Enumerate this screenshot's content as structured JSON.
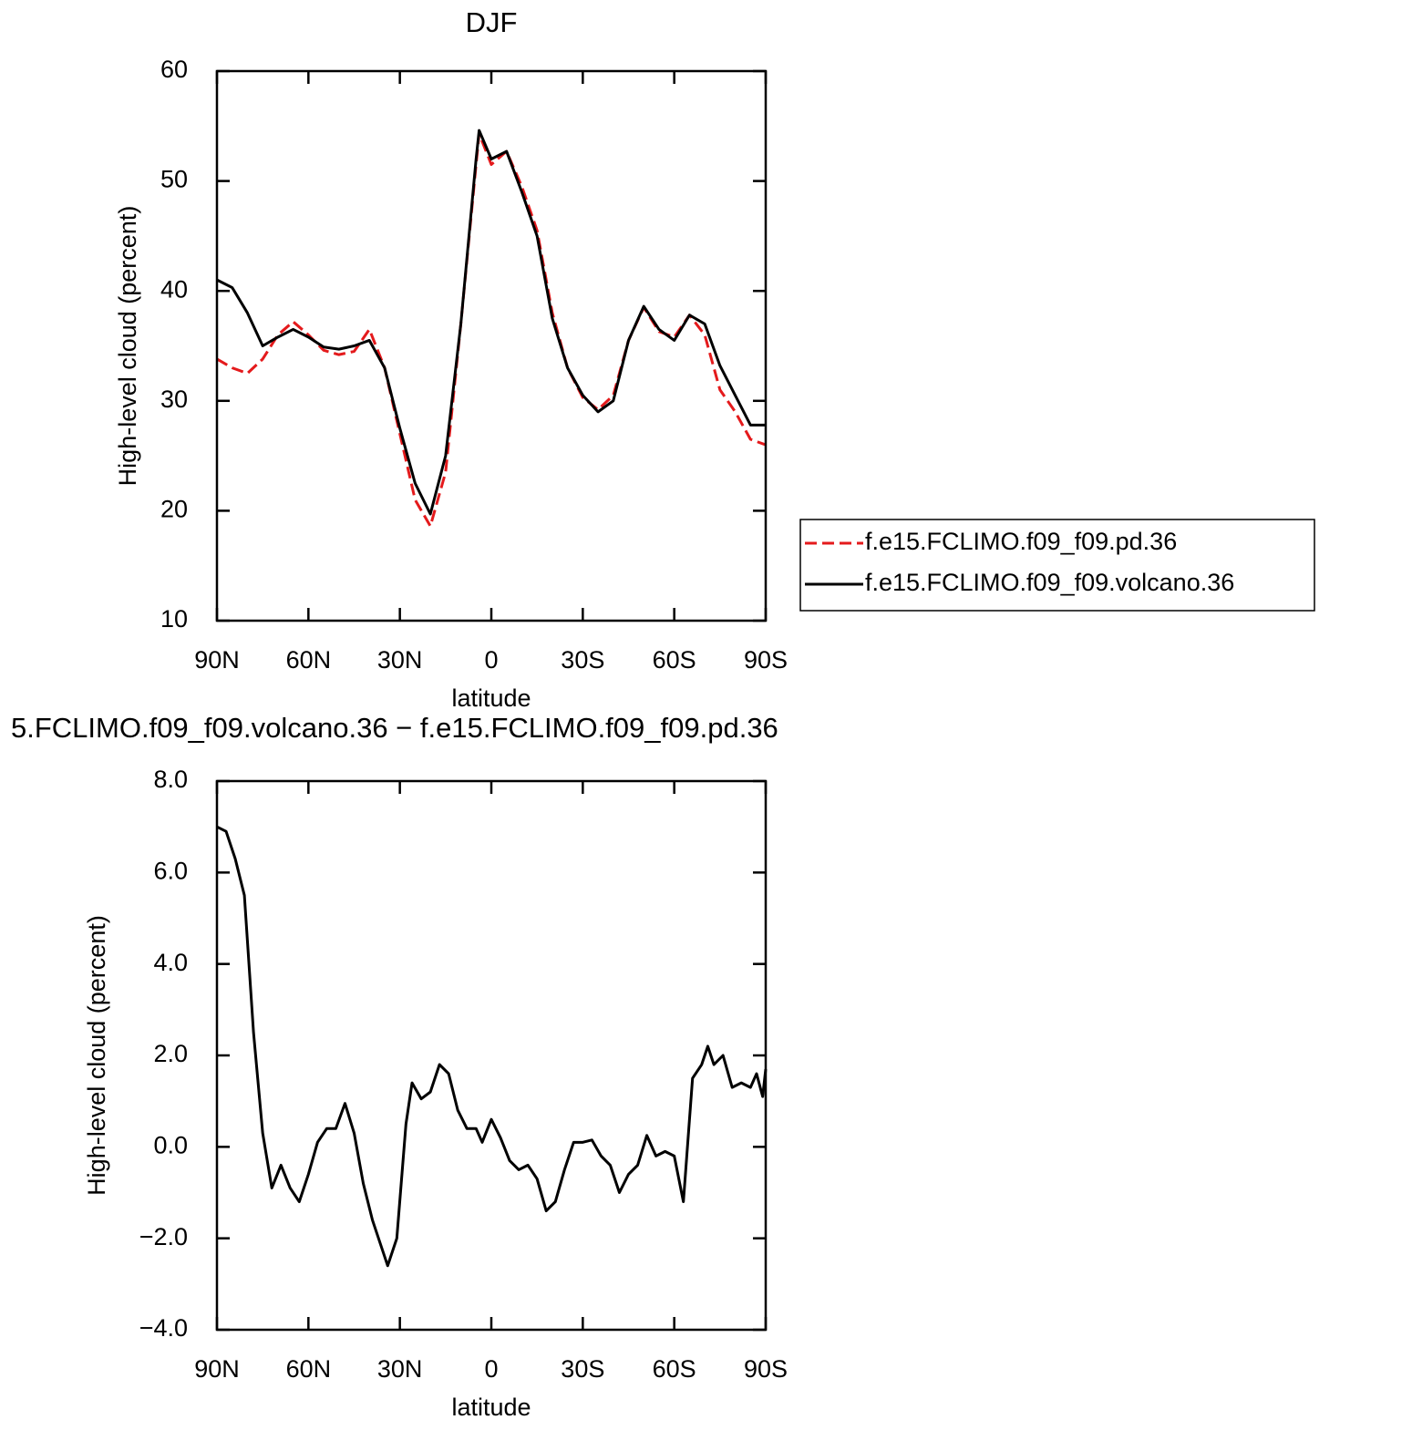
{
  "chart_data": [
    {
      "type": "line",
      "title": "DJF",
      "xlabel": "latitude",
      "ylabel": "High-level cloud (percent)",
      "x": [
        90,
        85,
        80,
        75,
        70,
        65,
        60,
        55,
        50,
        45,
        40,
        35,
        30,
        25,
        20,
        15,
        10,
        5,
        4,
        0,
        -5,
        -10,
        -15,
        -20,
        -25,
        -30,
        -35,
        -40,
        -45,
        -50,
        -55,
        -60,
        -65,
        -70,
        -75,
        -80,
        -85,
        -90
      ],
      "series": [
        {
          "name": "f.e15.FCLIMO.f09_f09.pd.36",
          "color": "#e41a1c",
          "dashed": true,
          "values": [
            33.8,
            33,
            32.5,
            33.8,
            36,
            37.2,
            36,
            34.6,
            34.2,
            34.5,
            36.5,
            33,
            27,
            21,
            18.6,
            23.5,
            37,
            51.5,
            54.3,
            51.5,
            52.7,
            49.5,
            45.5,
            38,
            33,
            30.3,
            29.2,
            30.5,
            35.5,
            38.5,
            36.3,
            35.8,
            37.8,
            36,
            31,
            29,
            26.5,
            26
          ]
        },
        {
          "name": "f.e15.FCLIMO.f09_f09.volcano.36",
          "color": "#000000",
          "dashed": false,
          "values": [
            41,
            40.3,
            38,
            35,
            35.8,
            36.5,
            35.8,
            34.9,
            34.7,
            35,
            35.5,
            33,
            27.5,
            22.5,
            19.7,
            25,
            37,
            52,
            54.6,
            52,
            52.7,
            49,
            45,
            37.5,
            33,
            30.5,
            29,
            30,
            35.5,
            38.6,
            36.5,
            35.5,
            37.8,
            37,
            33.2,
            30.5,
            27.8,
            27.8
          ]
        }
      ],
      "xlim": [
        90,
        -90
      ],
      "xticks": [
        {
          "value": 90,
          "label": "90N"
        },
        {
          "value": 60,
          "label": "60N"
        },
        {
          "value": 30,
          "label": "30N"
        },
        0,
        {
          "value": -30,
          "label": "30S"
        },
        {
          "value": -60,
          "label": "60S"
        },
        {
          "value": -90,
          "label": "90S"
        }
      ],
      "ylim": [
        10,
        60
      ],
      "yticks": [
        10,
        20,
        30,
        40,
        50,
        60
      ],
      "legend": "outside-lower-right"
    },
    {
      "type": "line",
      "title": "5.FCLIMO.f09_f09.volcano.36 − f.e15.FCLIMO.f09_f09.pd.36",
      "xlabel": "latitude",
      "ylabel": "High-level cloud (percent)",
      "x": [
        90,
        87,
        84,
        81,
        78,
        75,
        72,
        69,
        66,
        63,
        60,
        57,
        54,
        51,
        48,
        45,
        42,
        39,
        36,
        34,
        31,
        28,
        26,
        23,
        20,
        17,
        14,
        11,
        8,
        5,
        3,
        0,
        -3,
        -6,
        -9,
        -12,
        -15,
        -18,
        -21,
        -24,
        -27,
        -30,
        -33,
        -36,
        -39,
        -42,
        -45,
        -48,
        -51,
        -54,
        -57,
        -60,
        -63,
        -66,
        -69,
        -71,
        -73,
        -76,
        -79,
        -82,
        -85,
        -87,
        -89,
        -90
      ],
      "series": [
        {
          "color": "#000000",
          "dashed": false,
          "values": [
            7.0,
            6.9,
            6.3,
            5.5,
            2.5,
            0.3,
            -0.9,
            -0.4,
            -0.9,
            -1.2,
            -0.6,
            0.1,
            0.4,
            0.4,
            0.95,
            0.3,
            -0.8,
            -1.6,
            -2.2,
            -2.6,
            -2.0,
            0.5,
            1.4,
            1.05,
            1.2,
            1.8,
            1.6,
            0.8,
            0.4,
            0.4,
            0.1,
            0.6,
            0.2,
            -0.3,
            -0.5,
            -0.4,
            -0.7,
            -1.4,
            -1.2,
            -0.5,
            0.1,
            0.1,
            0.15,
            -0.2,
            -0.4,
            -1.0,
            -0.6,
            -0.4,
            0.25,
            -0.2,
            -0.1,
            -0.2,
            -1.2,
            1.5,
            1.8,
            2.2,
            1.8,
            2.0,
            1.3,
            1.4,
            1.3,
            1.6,
            1.1,
            1.7
          ]
        }
      ],
      "xlim": [
        90,
        -90
      ],
      "xticks": [
        {
          "value": 90,
          "label": "90N"
        },
        {
          "value": 60,
          "label": "60N"
        },
        {
          "value": 30,
          "label": "30N"
        },
        0,
        {
          "value": -30,
          "label": "30S"
        },
        {
          "value": -60,
          "label": "60S"
        },
        {
          "value": -90,
          "label": "90S"
        }
      ],
      "ylim": [
        -4,
        8
      ],
      "yticks": [
        {
          "value": -4,
          "label": "−4.0"
        },
        {
          "value": -2,
          "label": "−2.0"
        },
        {
          "value": 0,
          "label": "0.0"
        },
        {
          "value": 2,
          "label": "2.0"
        },
        {
          "value": 4,
          "label": "4.0"
        },
        {
          "value": 6,
          "label": "6.0"
        },
        {
          "value": 8,
          "label": "8.0"
        }
      ]
    }
  ]
}
